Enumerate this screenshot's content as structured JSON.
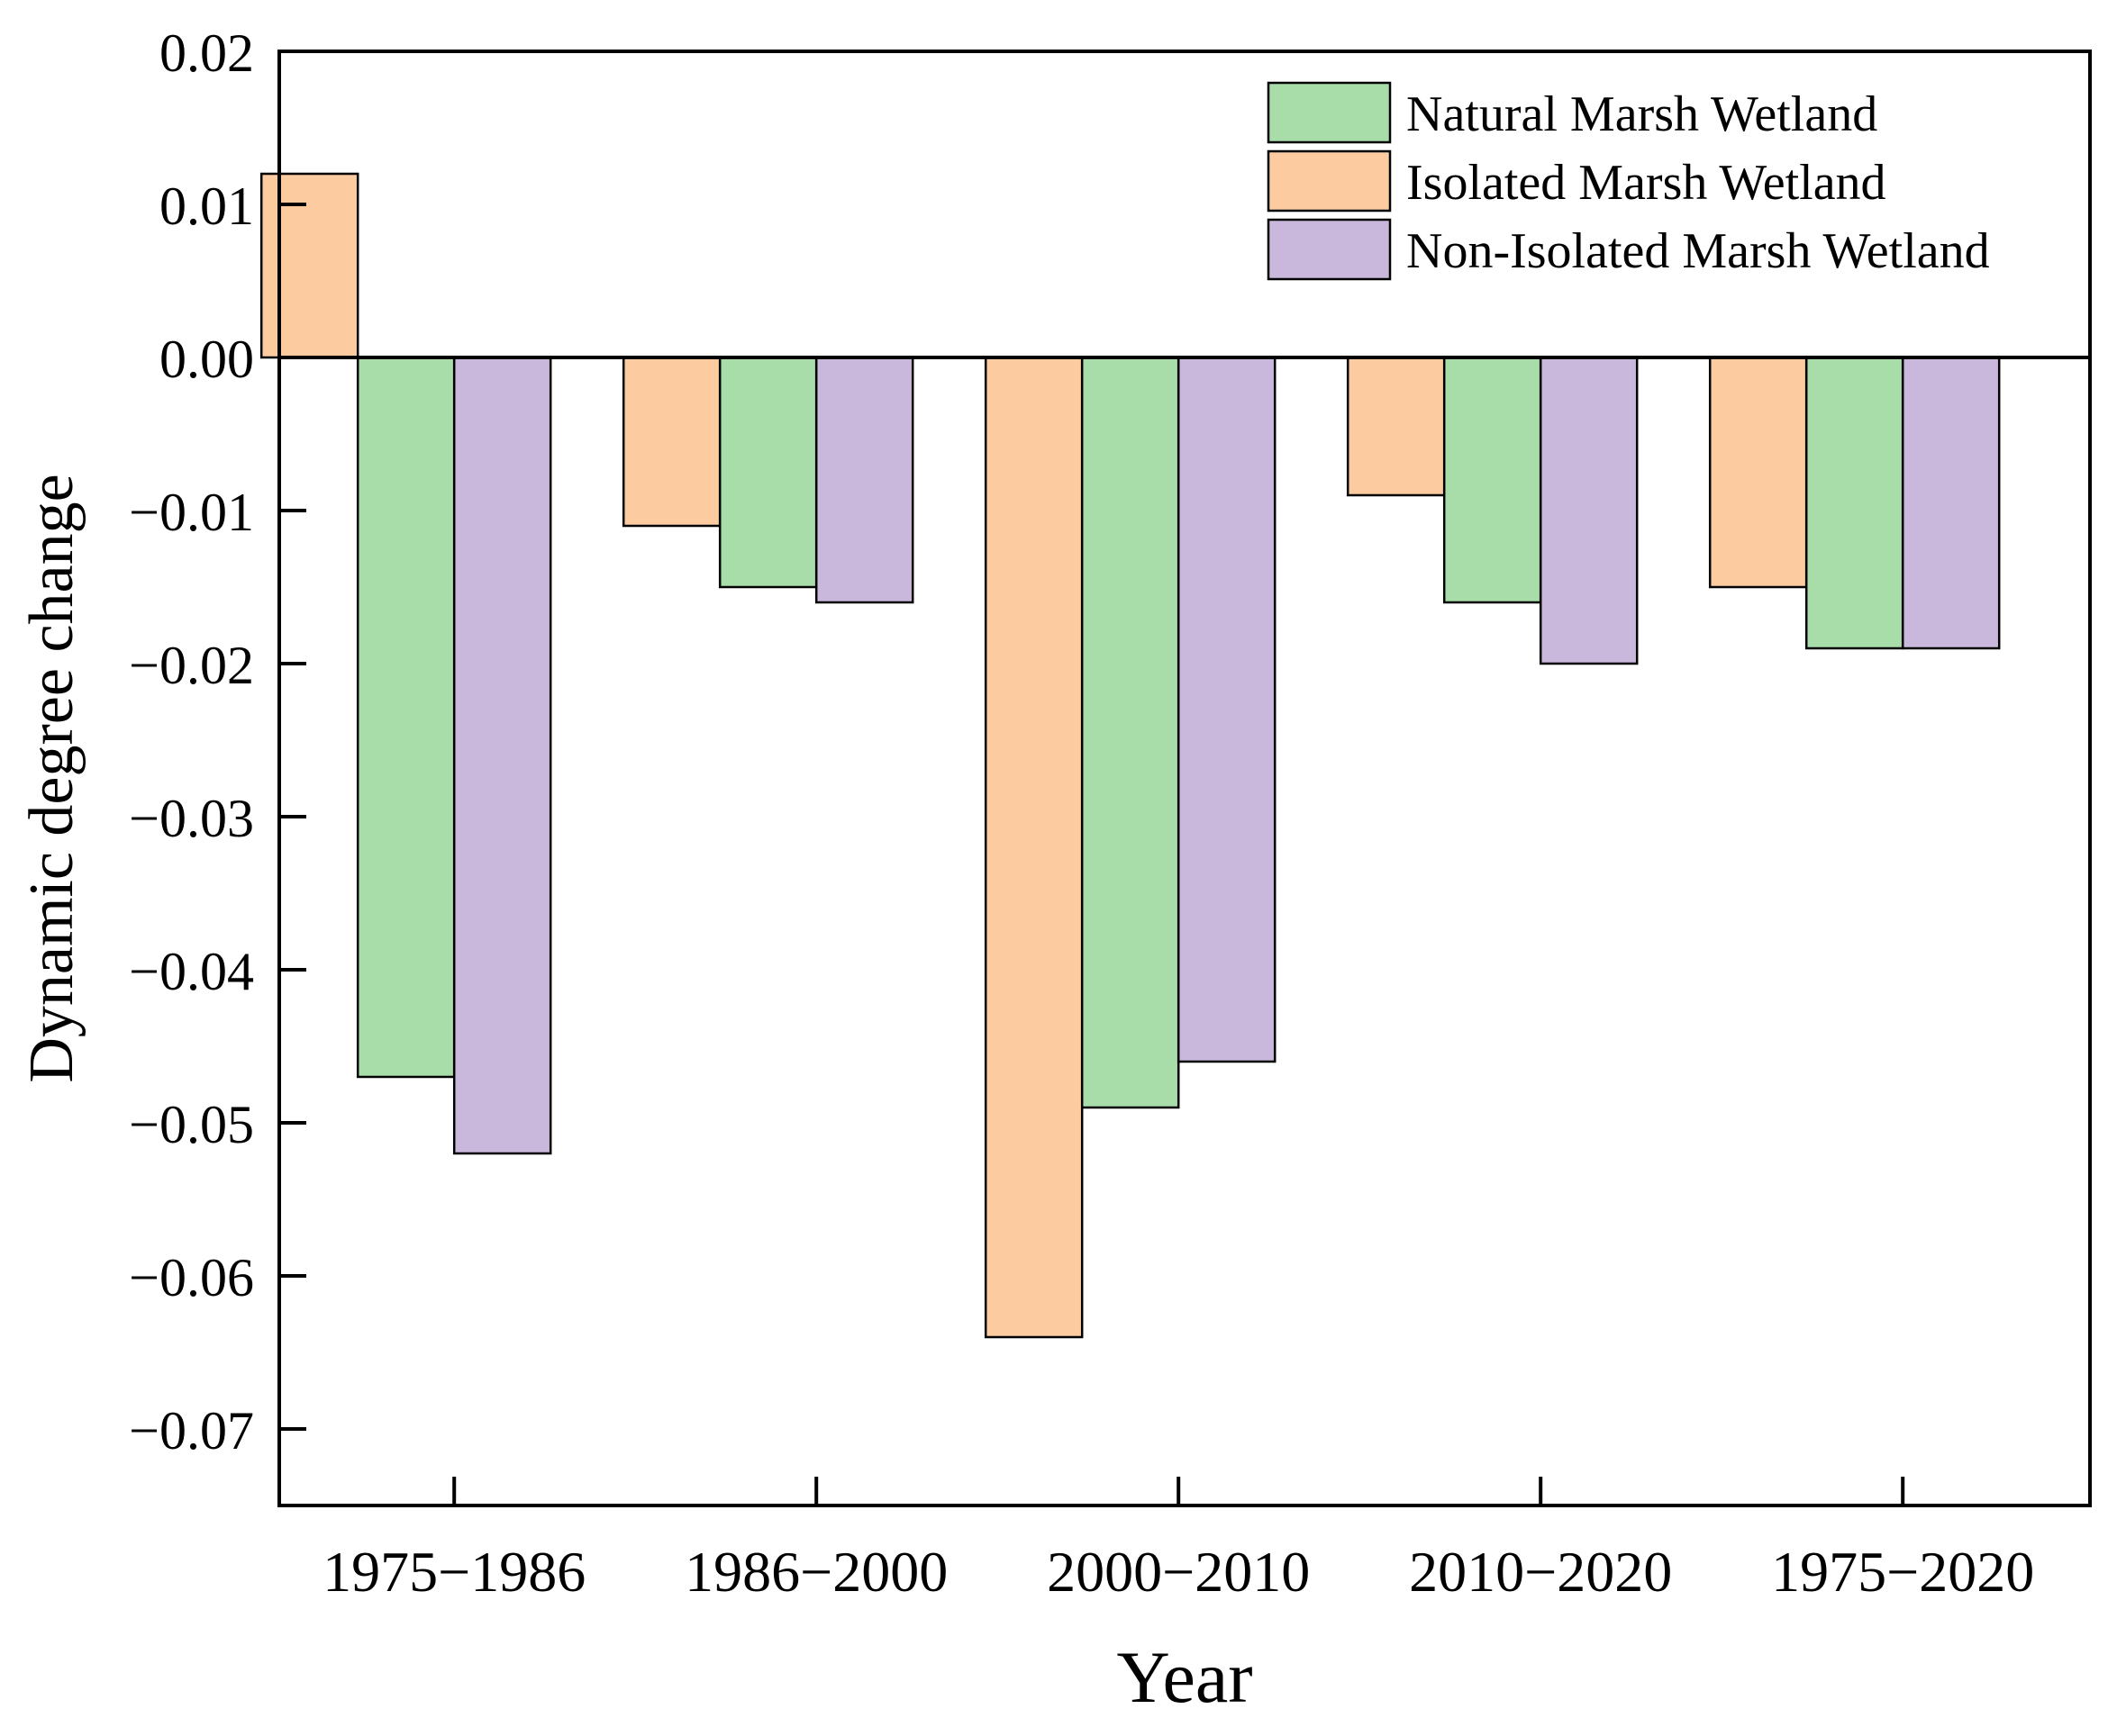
{
  "chart_data": {
    "type": "bar",
    "title": "",
    "xlabel": "Year",
    "ylabel": "Dynamic degree change",
    "ylim": [
      -0.075,
      0.02
    ],
    "yticks": [
      0.02,
      0.01,
      0.0,
      -0.01,
      -0.02,
      -0.03,
      -0.04,
      -0.05,
      -0.06,
      -0.07
    ],
    "ytick_labels": [
      "0.02",
      "0.01",
      "0.00",
      "−0.01",
      "−0.02",
      "−0.03",
      "−0.04",
      "−0.05",
      "−0.06",
      "−0.07"
    ],
    "categories": [
      "1975−1986",
      "1986−2000",
      "2000−2010",
      "2010−2020",
      "1975−2020"
    ],
    "bar_order": [
      "Isolated Marsh Wetland",
      "Natural Marsh Wetland",
      "Non-Isolated Marsh Wetland"
    ],
    "series": [
      {
        "name": "Natural Marsh Wetland",
        "color": "#a8ddaa",
        "values": [
          -0.047,
          -0.015,
          -0.049,
          -0.016,
          -0.019
        ]
      },
      {
        "name": "Isolated Marsh Wetland",
        "color": "#fccca0",
        "values": [
          0.012,
          -0.011,
          -0.064,
          -0.009,
          -0.015
        ]
      },
      {
        "name": "Non-Isolated Marsh Wetland",
        "color": "#c9b8dc",
        "values": [
          -0.052,
          -0.016,
          -0.046,
          -0.02,
          -0.019
        ]
      }
    ],
    "legend_position": "top-right",
    "grid": false
  }
}
